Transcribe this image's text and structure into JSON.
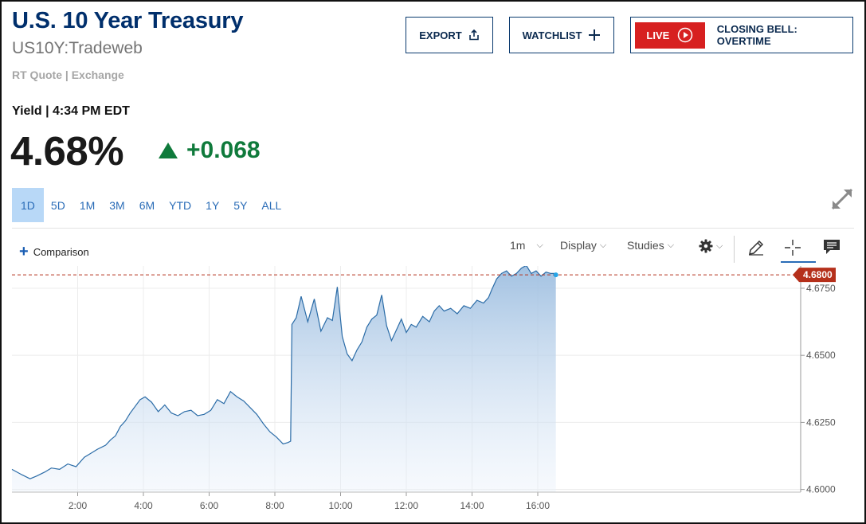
{
  "header": {
    "title": "U.S. 10 Year Treasury",
    "symbol": "US10Y:Tradeweb",
    "quote_source": "RT Quote | Exchange"
  },
  "actions": {
    "export_label": "EXPORT",
    "watchlist_label": "WATCHLIST",
    "live_label": "LIVE",
    "live_show": "CLOSING BELL: OVERTIME"
  },
  "quote": {
    "yield_label": "Yield | 4:34 PM EDT",
    "last": "4.68%",
    "change": "+0.068",
    "direction": "up"
  },
  "ranges": [
    "1D",
    "5D",
    "1M",
    "3M",
    "6M",
    "YTD",
    "1Y",
    "5Y",
    "ALL"
  ],
  "active_range": "1D",
  "toolbar": {
    "comparison_label": "Comparison",
    "interval_label": "1m",
    "display_label": "Display",
    "studies_label": "Studies"
  },
  "colors": {
    "title": "#002f6c",
    "positive": "#0f7a3b",
    "live": "#d72020",
    "line": "#2b6ca7",
    "price_tag": "#b5301b",
    "active_range": "#b8d8f7"
  },
  "icons": {
    "export": "share-upload-icon",
    "watchlist": "plus-icon",
    "live": "play-circle-icon",
    "expand": "expand-arrows-icon",
    "settings": "gear-icon",
    "draw": "pencil-icon",
    "crosshair": "crosshair-icon",
    "comment": "comment-icon"
  },
  "chart_data": {
    "type": "area",
    "title": "",
    "xlabel": "",
    "ylabel": "",
    "x_ticks": [
      "2:00",
      "4:00",
      "6:00",
      "8:00",
      "10:00",
      "12:00",
      "14:00",
      "16:00"
    ],
    "x_tick_hours": [
      2,
      4,
      6,
      8,
      10,
      12,
      14,
      16
    ],
    "xlim_hours": [
      0,
      24
    ],
    "y_ticks": [
      "4.6000",
      "4.6250",
      "4.6500",
      "4.6750"
    ],
    "y_tick_values": [
      4.6,
      4.625,
      4.65,
      4.675
    ],
    "ylim": [
      4.599,
      4.6833
    ],
    "last_value": 4.68,
    "last_value_label": "4.6800",
    "grid": true,
    "series": [
      {
        "x_hours": [
          0.0,
          0.3,
          0.55,
          0.75,
          1.0,
          1.2,
          1.45,
          1.7,
          1.95,
          2.2,
          2.4,
          2.6,
          2.85,
          3.0,
          3.15,
          3.3,
          3.45,
          3.6,
          3.75,
          3.9,
          4.05,
          4.25,
          4.45,
          4.65,
          4.85,
          5.05,
          5.25,
          5.45,
          5.65,
          5.85,
          6.05,
          6.25,
          6.45,
          6.65,
          6.85,
          7.05,
          7.25,
          7.45,
          7.65,
          7.85,
          8.05,
          8.25,
          8.4,
          8.48,
          8.52,
          8.65,
          8.8,
          9.0,
          9.2,
          9.4,
          9.6,
          9.75,
          9.9,
          10.05,
          10.2,
          10.35,
          10.5,
          10.65,
          10.8,
          10.95,
          11.1,
          11.25,
          11.4,
          11.55,
          11.7,
          11.85,
          12.0,
          12.15,
          12.3,
          12.5,
          12.7,
          12.85,
          13.0,
          13.15,
          13.35,
          13.55,
          13.75,
          13.95,
          14.15,
          14.35,
          14.5,
          14.6,
          14.75,
          14.9,
          15.05,
          15.2,
          15.35,
          15.5,
          15.65,
          15.8,
          15.95,
          16.1,
          16.25,
          16.4,
          16.55
        ],
        "values": [
          4.6075,
          4.6055,
          4.604,
          4.605,
          4.6065,
          4.608,
          4.6075,
          4.6095,
          4.6085,
          4.612,
          4.6135,
          4.615,
          4.6165,
          4.6185,
          4.62,
          4.6235,
          4.6255,
          4.6285,
          4.631,
          4.6335,
          4.6345,
          4.6325,
          4.629,
          4.6315,
          4.6285,
          4.6275,
          4.629,
          4.6295,
          4.6275,
          4.628,
          4.6295,
          4.6335,
          4.632,
          4.6365,
          4.6345,
          4.633,
          4.6305,
          4.628,
          4.6245,
          4.6215,
          4.6195,
          4.617,
          4.6175,
          4.618,
          4.6615,
          4.664,
          4.672,
          4.6625,
          4.671,
          4.659,
          4.664,
          4.663,
          4.6755,
          4.657,
          4.6505,
          4.648,
          4.652,
          4.655,
          4.6605,
          4.6635,
          4.665,
          4.6725,
          4.661,
          4.6555,
          4.6595,
          4.6635,
          4.6585,
          4.6615,
          4.6605,
          4.6645,
          4.6625,
          4.6665,
          4.6685,
          4.6665,
          4.6675,
          4.6655,
          4.6685,
          4.6675,
          4.6705,
          4.6695,
          4.6715,
          4.6745,
          4.6785,
          4.6805,
          4.6815,
          4.6795,
          4.6805,
          4.6825,
          4.6835,
          4.6805,
          4.6815,
          4.6795,
          4.681,
          4.6805,
          4.6805
        ]
      }
    ]
  }
}
